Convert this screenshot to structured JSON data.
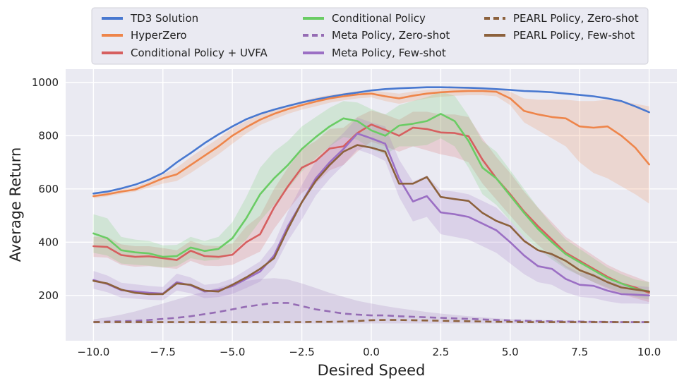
{
  "chart_data": {
    "type": "line",
    "xlabel": "Desired Speed",
    "ylabel": "Average Return",
    "xlim": [
      -11.0,
      11.0
    ],
    "ylim": [
      30,
      1050
    ],
    "xticks": [
      -10,
      -7.5,
      -5,
      -2.5,
      0,
      2.5,
      5,
      7.5,
      10
    ],
    "xtick_labels": [
      "−10.0",
      "−7.5",
      "−5.0",
      "−2.5",
      "0.0",
      "2.5",
      "5.0",
      "7.5",
      "10.0"
    ],
    "yticks": [
      200,
      400,
      600,
      800,
      1000
    ],
    "ytick_labels": [
      "200",
      "400",
      "600",
      "800",
      "1000"
    ],
    "grid": true,
    "legend_position": "top",
    "x": [
      -10.0,
      -9.5,
      -9.0,
      -8.5,
      -8.0,
      -7.5,
      -7.0,
      -6.5,
      -6.0,
      -5.5,
      -5.0,
      -4.5,
      -4.0,
      -3.5,
      -3.0,
      -2.5,
      -2.0,
      -1.5,
      -1.0,
      -0.5,
      0.0,
      0.5,
      1.0,
      1.5,
      2.0,
      2.5,
      3.0,
      3.5,
      4.0,
      4.5,
      5.0,
      5.5,
      6.0,
      6.5,
      7.0,
      7.5,
      8.0,
      8.5,
      9.0,
      9.5,
      10.0
    ],
    "series": [
      {
        "name": "TD3 Solution",
        "color": "#4878d0",
        "style": "solid",
        "values": [
          583,
          590,
          602,
          616,
          635,
          660,
          700,
          735,
          772,
          805,
          835,
          862,
          882,
          898,
          912,
          925,
          936,
          946,
          955,
          962,
          970,
          975,
          978,
          980,
          982,
          982,
          981,
          980,
          978,
          975,
          972,
          968,
          966,
          963,
          958,
          953,
          948,
          940,
          930,
          910,
          888
        ]
      },
      {
        "name": "HyperZero",
        "color": "#ee854a",
        "style": "solid",
        "values": [
          573,
          580,
          590,
          598,
          618,
          640,
          655,
          690,
          725,
          760,
          800,
          832,
          860,
          882,
          900,
          915,
          928,
          940,
          948,
          955,
          958,
          948,
          940,
          950,
          958,
          963,
          966,
          968,
          968,
          965,
          940,
          893,
          880,
          870,
          865,
          835,
          830,
          835,
          800,
          755,
          692
        ],
        "lower": [
          565,
          572,
          582,
          590,
          605,
          620,
          630,
          660,
          695,
          730,
          770,
          808,
          840,
          862,
          882,
          898,
          910,
          924,
          933,
          940,
          944,
          930,
          920,
          930,
          940,
          946,
          950,
          952,
          952,
          948,
          915,
          850,
          820,
          790,
          760,
          700,
          660,
          640,
          610,
          580,
          545
        ],
        "upper": [
          582,
          589,
          599,
          608,
          628,
          655,
          680,
          720,
          755,
          790,
          828,
          855,
          880,
          898,
          915,
          930,
          943,
          953,
          960,
          968,
          970,
          964,
          958,
          966,
          972,
          976,
          978,
          979,
          979,
          978,
          965,
          940,
          935,
          935,
          935,
          930,
          930,
          935,
          930,
          920,
          910
        ]
      },
      {
        "name": "Conditional Policy + UVFA",
        "color": "#d65f5f",
        "style": "solid",
        "values": [
          385,
          382,
          352,
          345,
          347,
          340,
          333,
          368,
          348,
          345,
          353,
          400,
          430,
          530,
          610,
          680,
          705,
          752,
          760,
          810,
          842,
          822,
          800,
          830,
          825,
          812,
          810,
          798,
          710,
          640,
          580,
          515,
          460,
          410,
          360,
          330,
          300,
          270,
          245,
          230,
          210
        ],
        "lower": [
          345,
          342,
          315,
          308,
          310,
          305,
          300,
          330,
          312,
          310,
          315,
          340,
          365,
          450,
          520,
          585,
          620,
          670,
          690,
          740,
          778,
          760,
          740,
          760,
          745,
          730,
          720,
          700,
          620,
          560,
          500,
          440,
          390,
          345,
          305,
          275,
          250,
          225,
          205,
          190,
          175
        ],
        "upper": [
          420,
          420,
          392,
          385,
          385,
          378,
          370,
          405,
          388,
          385,
          395,
          460,
          500,
          600,
          680,
          750,
          780,
          825,
          830,
          870,
          895,
          880,
          860,
          890,
          890,
          880,
          880,
          870,
          790,
          720,
          660,
          590,
          530,
          475,
          420,
          385,
          350,
          315,
          290,
          270,
          250
        ]
      },
      {
        "name": "Conditional Policy",
        "color": "#6acc64",
        "style": "solid",
        "values": [
          433,
          415,
          370,
          362,
          358,
          345,
          348,
          380,
          367,
          375,
          415,
          490,
          580,
          640,
          690,
          750,
          795,
          835,
          865,
          855,
          820,
          800,
          838,
          845,
          855,
          882,
          855,
          780,
          680,
          640,
          575,
          510,
          450,
          400,
          355,
          325,
          295,
          265,
          245,
          225,
          215
        ],
        "lower": [
          360,
          350,
          320,
          315,
          312,
          305,
          310,
          340,
          330,
          335,
          360,
          410,
          480,
          540,
          600,
          665,
          715,
          760,
          795,
          785,
          750,
          730,
          760,
          760,
          765,
          790,
          760,
          680,
          580,
          540,
          480,
          420,
          375,
          335,
          300,
          275,
          250,
          230,
          210,
          195,
          185
        ],
        "upper": [
          505,
          490,
          420,
          410,
          405,
          388,
          390,
          420,
          405,
          420,
          475,
          570,
          680,
          740,
          780,
          835,
          870,
          905,
          930,
          925,
          900,
          880,
          915,
          930,
          945,
          965,
          950,
          875,
          780,
          740,
          670,
          600,
          530,
          465,
          410,
          375,
          340,
          305,
          280,
          260,
          250
        ]
      },
      {
        "name": "Meta Policy, Zero-shot",
        "color": "#956cb4",
        "style": "dashed",
        "values": [
          100,
          102,
          103,
          105,
          108,
          112,
          116,
          122,
          130,
          138,
          148,
          158,
          165,
          172,
          172,
          160,
          148,
          140,
          132,
          128,
          125,
          125,
          122,
          120,
          118,
          116,
          114,
          112,
          110,
          108,
          106,
          105,
          104,
          103,
          102,
          102,
          101,
          101,
          100,
          100,
          100
        ],
        "lower": [
          94,
          95,
          95,
          95,
          95,
          95,
          95,
          95,
          95,
          95,
          95,
          95,
          95,
          95,
          95,
          95,
          95,
          95,
          95,
          95,
          95,
          95,
          95,
          95,
          95,
          95,
          95,
          95,
          95,
          95,
          95,
          95,
          95,
          95,
          95,
          95,
          95,
          95,
          95,
          95,
          95
        ],
        "upper": [
          110,
          118,
          128,
          140,
          155,
          170,
          185,
          200,
          215,
          230,
          245,
          255,
          262,
          265,
          260,
          245,
          228,
          210,
          195,
          180,
          170,
          160,
          152,
          145,
          138,
          132,
          127,
          122,
          118,
          114,
          111,
          109,
          108,
          107,
          106,
          105,
          104,
          104,
          103,
          103,
          103
        ]
      },
      {
        "name": "Meta Policy, Few-shot",
        "color": "#9b6fc4",
        "style": "solid",
        "values": [
          258,
          243,
          220,
          215,
          210,
          207,
          250,
          238,
          215,
          220,
          235,
          262,
          290,
          350,
          460,
          550,
          640,
          700,
          750,
          808,
          790,
          770,
          640,
          553,
          573,
          512,
          505,
          495,
          470,
          445,
          400,
          350,
          310,
          300,
          262,
          240,
          236,
          218,
          205,
          203,
          200
        ],
        "lower": [
          225,
          212,
          192,
          188,
          184,
          182,
          218,
          208,
          190,
          194,
          206,
          228,
          252,
          305,
          405,
          485,
          575,
          638,
          690,
          748,
          730,
          705,
          570,
          478,
          495,
          430,
          420,
          410,
          385,
          360,
          320,
          280,
          250,
          240,
          212,
          195,
          190,
          178,
          170,
          170,
          168
        ],
        "upper": [
          292,
          275,
          248,
          242,
          236,
          232,
          282,
          268,
          240,
          246,
          264,
          296,
          328,
          395,
          515,
          615,
          705,
          762,
          810,
          868,
          850,
          835,
          710,
          628,
          650,
          595,
          590,
          580,
          555,
          530,
          480,
          420,
          370,
          360,
          312,
          285,
          282,
          258,
          240,
          236,
          232
        ]
      },
      {
        "name": "PEARL Policy, Zero-shot",
        "color": "#8c613c",
        "style": "dashed",
        "values": [
          100,
          100,
          100,
          100,
          100,
          100,
          100,
          100,
          100,
          100,
          100,
          100,
          100,
          100,
          100,
          100,
          101,
          101,
          102,
          104,
          107,
          108,
          108,
          107,
          106,
          105,
          104,
          103,
          102,
          101,
          101,
          100,
          100,
          100,
          100,
          100,
          100,
          100,
          100,
          100,
          100
        ]
      },
      {
        "name": "PEARL Policy, Few-shot",
        "color": "#8c613c",
        "style": "solid",
        "values": [
          255,
          245,
          222,
          210,
          205,
          205,
          245,
          240,
          218,
          215,
          240,
          268,
          300,
          340,
          450,
          550,
          630,
          690,
          740,
          765,
          755,
          740,
          620,
          620,
          645,
          570,
          562,
          555,
          510,
          480,
          460,
          405,
          370,
          355,
          330,
          295,
          275,
          250,
          230,
          222,
          215
        ]
      }
    ]
  }
}
